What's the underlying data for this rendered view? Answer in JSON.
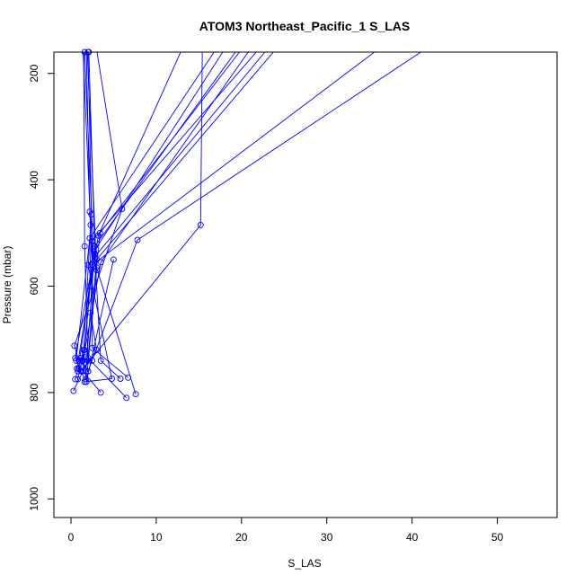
{
  "chart_data": {
    "type": "line",
    "title": "ATOM3 Northeast_Pacific_1 S_LAS",
    "xlabel": "S_LAS",
    "ylabel": "Pressure (mbar)",
    "xlim": [
      -2,
      57
    ],
    "ylim": [
      1035,
      160
    ],
    "y_reversed": true,
    "x_ticks": [
      0,
      10,
      20,
      30,
      40,
      50
    ],
    "y_ticks": [
      200,
      400,
      600,
      800,
      1000
    ],
    "grid": false,
    "legend": "none",
    "line_color": "#0000ff",
    "series": [
      {
        "x": [
          1.8,
          2.2,
          2.5,
          2.3,
          3.0,
          1.2
        ],
        "y": [
          155,
          460,
          560,
          650,
          720,
          760
        ]
      },
      {
        "x": [
          2.0,
          2.4,
          2.2,
          1.6,
          0.8
        ],
        "y": [
          160,
          465,
          600,
          720,
          775
        ]
      },
      {
        "x": [
          1.4,
          2.3,
          1.5,
          0.5
        ],
        "y": [
          155,
          485,
          720,
          775
        ]
      },
      {
        "x": [
          1.5,
          1.6,
          2.0,
          0.3
        ],
        "y": [
          155,
          525,
          740,
          797
        ]
      },
      {
        "x": [
          1.6,
          2.6,
          1.4,
          3.5
        ],
        "y": [
          160,
          530,
          760,
          800
        ]
      },
      {
        "x": [
          1.9,
          3.0,
          1.8,
          5.0
        ],
        "y": [
          155,
          570,
          780,
          550
        ]
      },
      {
        "x": [
          2.1,
          2.8,
          3.5,
          5.8
        ],
        "y": [
          160,
          540,
          740,
          774
        ]
      },
      {
        "x": [
          3.0,
          6.0,
          0.4,
          0.9
        ],
        "y": [
          155,
          455,
          712,
          740
        ]
      },
      {
        "x": [
          15.4,
          15.2,
          1.2
        ],
        "y": [
          155,
          485,
          760
        ]
      },
      {
        "x": [
          20.0,
          3.4,
          3.0,
          7.6
        ],
        "y": [
          155,
          500,
          565,
          803
        ]
      },
      {
        "x": [
          22.0,
          2.5,
          2.5,
          6.7
        ],
        "y": [
          155,
          515,
          716,
          772
        ]
      },
      {
        "x": [
          24.0,
          3.0,
          2.0,
          6.5
        ],
        "y": [
          155,
          550,
          735,
          810
        ]
      },
      {
        "x": [
          17.0,
          2.2,
          0.6,
          1.1
        ],
        "y": [
          155,
          510,
          740,
          735
        ]
      },
      {
        "x": [
          18.0,
          2.7,
          1.0,
          2.0
        ],
        "y": [
          155,
          535,
          740,
          760
        ]
      },
      {
        "x": [
          13.0,
          3.2,
          0.7,
          1.6
        ],
        "y": [
          155,
          505,
          755,
          724
        ]
      },
      {
        "x": [
          21.0,
          3.5,
          1.4,
          0.8
        ],
        "y": [
          155,
          555,
          740,
          760
        ]
      },
      {
        "x": [
          36.0,
          2.5,
          0.5,
          2.5
        ],
        "y": [
          155,
          560,
          735,
          740
        ]
      },
      {
        "x": [
          41.5,
          7.8,
          2.0,
          1.3
        ],
        "y": [
          155,
          513,
          760,
          740
        ]
      },
      {
        "x": [
          23.0,
          2.0,
          4.8,
          1.6
        ],
        "y": [
          155,
          560,
          774,
          780
        ]
      },
      {
        "x": [
          19.5,
          2.8,
          1.7,
          0.9
        ],
        "y": [
          155,
          525,
          775,
          755
        ]
      }
    ]
  }
}
